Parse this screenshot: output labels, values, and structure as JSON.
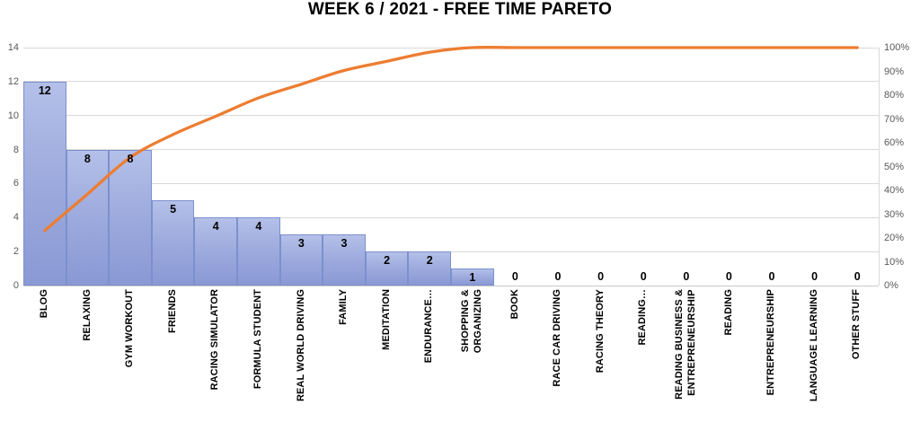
{
  "title": "WEEK 6 / 2021 - FREE TIME PARETO",
  "chart_data": {
    "type": "pareto (bar + cumulative line)",
    "title": "WEEK 6 / 2021 - FREE TIME PARETO",
    "categories": [
      "BLOG",
      "RELAXING",
      "GYM WORKOUT",
      "FRIENDS",
      "RACING SIMULATOR",
      "FORMULA STUDENT",
      "REAL WORLD DRIVING",
      "FAMILY",
      "MEDITATION",
      "ENDURANCE…",
      "SHOPPING &\nORGANIZING",
      "BOOK",
      "RACE CAR DRIVING",
      "RACING THEORY",
      "READING…",
      "READING BUSINESS &\nENTREPRENEURSHIP",
      "READING",
      "ENTREPRENEURSHIP",
      "LANGUAGE LEARNING",
      "OTHER STUFF"
    ],
    "series": [
      {
        "name": "hours",
        "type": "bar",
        "values": [
          12,
          8,
          8,
          5,
          4,
          4,
          3,
          3,
          2,
          2,
          1,
          0,
          0,
          0,
          0,
          0,
          0,
          0,
          0,
          0
        ]
      },
      {
        "name": "cumulative-percent",
        "type": "line",
        "values": [
          23.08,
          38.46,
          53.85,
          63.46,
          71.15,
          78.85,
          84.62,
          90.38,
          94.23,
          98.08,
          100,
          100,
          100,
          100,
          100,
          100,
          100,
          100,
          100,
          100
        ]
      }
    ],
    "left_axis": {
      "min": 0,
      "max": 14,
      "ticks": [
        "14",
        "12",
        "10",
        "8",
        "6",
        "4",
        "2",
        "0"
      ]
    },
    "right_axis": {
      "min": 0,
      "max": 100,
      "ticks": [
        "100%",
        "90%",
        "80%",
        "70%",
        "60%",
        "50%",
        "40%",
        "30%",
        "20%",
        "10%",
        "0%"
      ]
    },
    "grid": true,
    "legend": "none",
    "colors": {
      "bar_fill_top": "#b4c0e8",
      "bar_fill_bottom": "#8a99d4",
      "bar_border": "#7c90ce",
      "line": "#ED7D31",
      "gridline": "#d9d9d9",
      "axis_text": "#595959",
      "data_label_text": "#000000"
    }
  }
}
